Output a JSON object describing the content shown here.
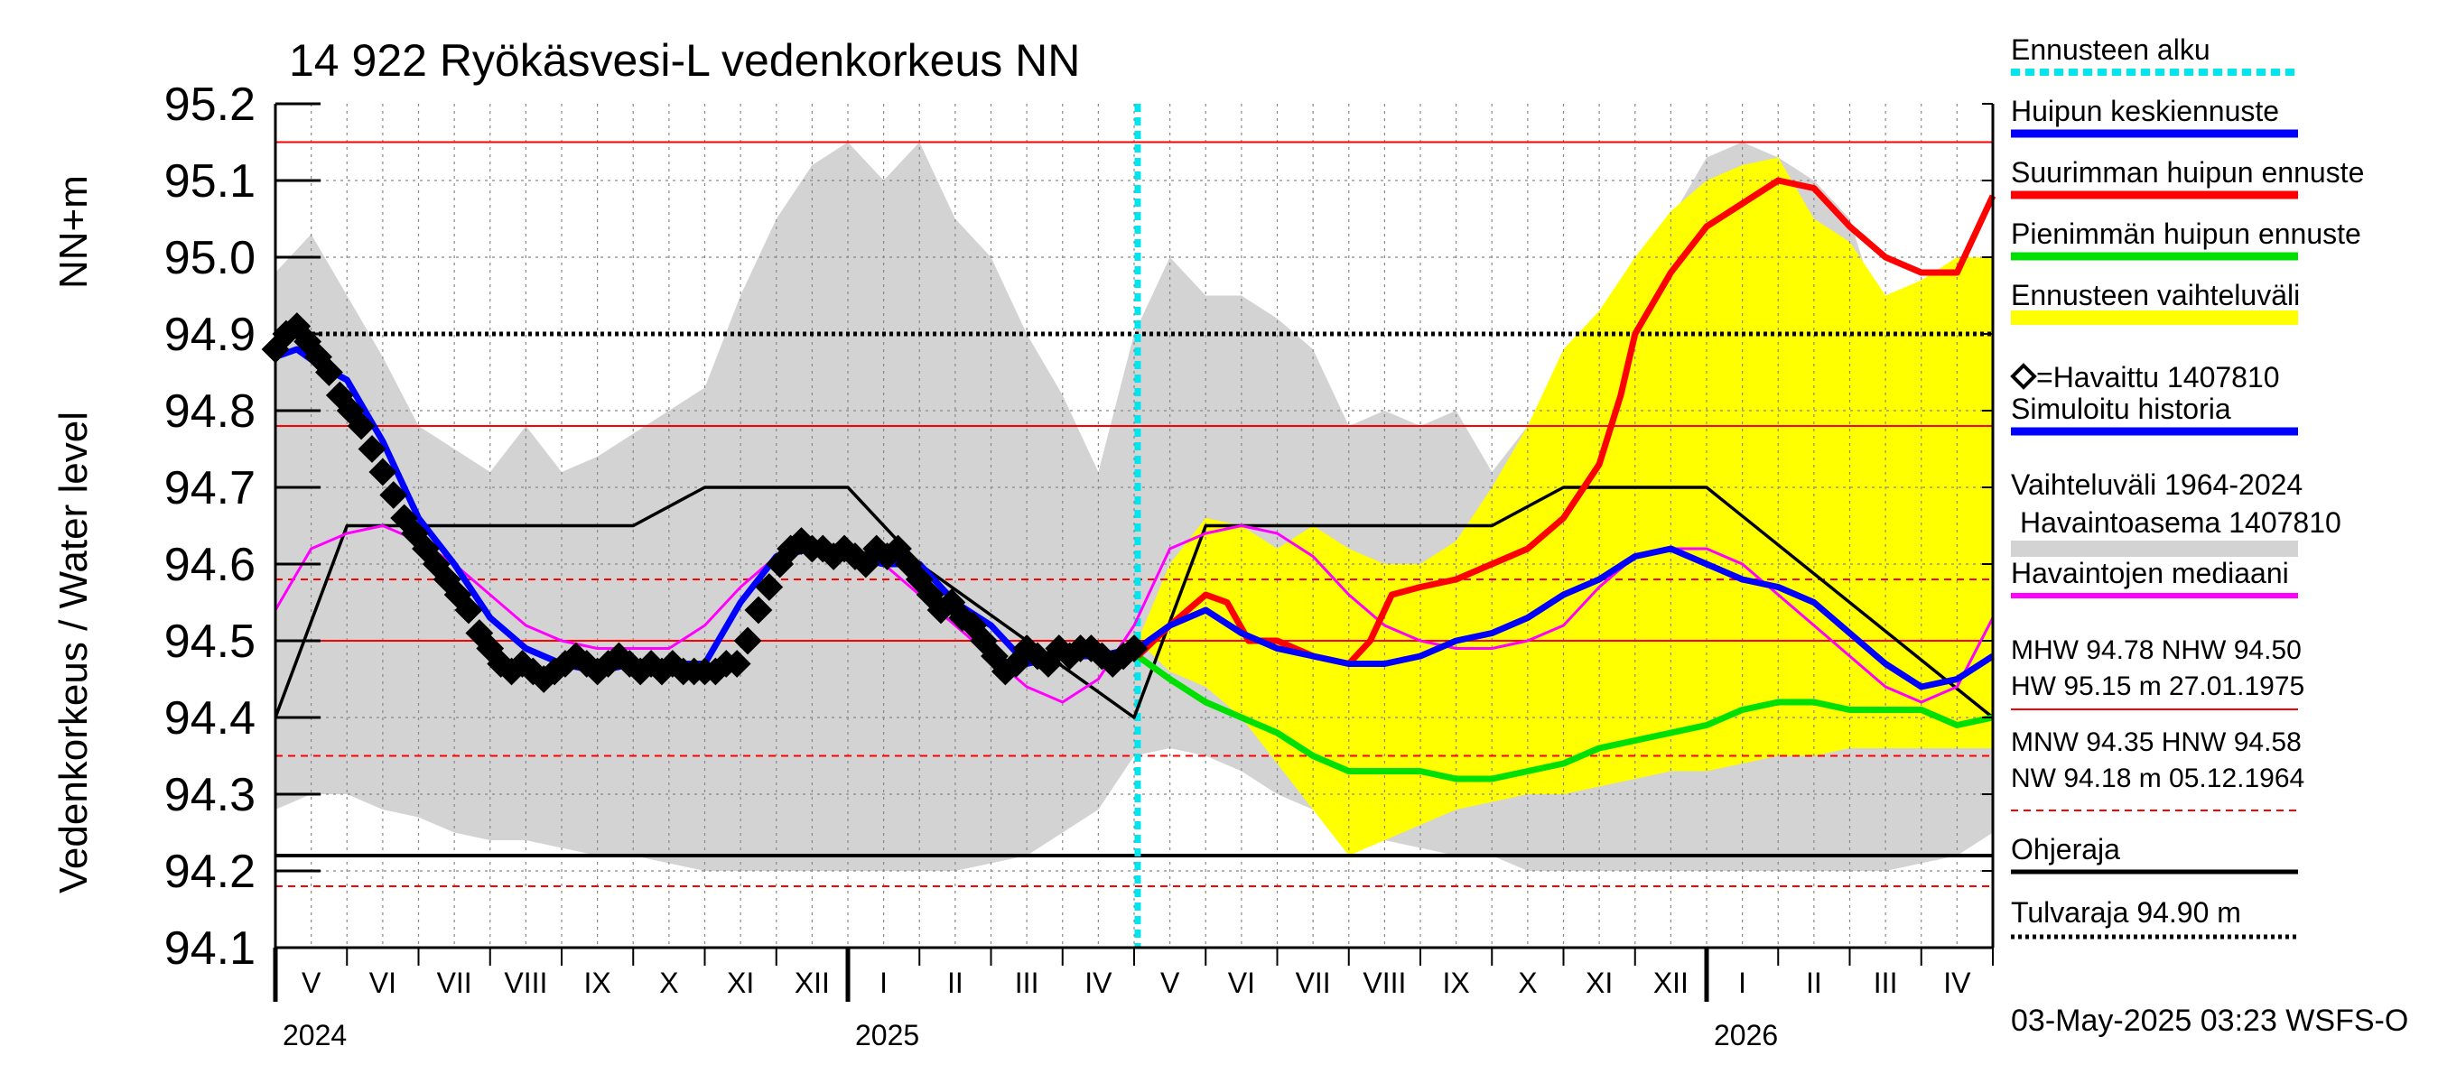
{
  "chart_data": {
    "type": "line",
    "title": "14 922 Ryökäsvesi-L vedenkorkeus NN",
    "ylabel_main": "Vedenkorkeus / Water level",
    "ylabel_unit": "NN+m",
    "ylim": [
      94.1,
      95.2
    ],
    "yticks": [
      "94.1",
      "94.2",
      "94.3",
      "94.4",
      "94.5",
      "94.6",
      "94.7",
      "94.8",
      "94.9",
      "95.0",
      "95.1",
      "95.2"
    ],
    "x_unit": "months since 2024-05-01",
    "xlim": [
      0,
      24
    ],
    "month_labels": [
      "V",
      "VI",
      "VII",
      "VIII",
      "IX",
      "X",
      "XI",
      "XII",
      "I",
      "II",
      "III",
      "IV",
      "V",
      "VI",
      "VII",
      "VIII",
      "IX",
      "X",
      "XI",
      "XII",
      "I",
      "II",
      "III",
      "IV"
    ],
    "year_labels": [
      {
        "label": "2024",
        "at": 0
      },
      {
        "label": "2025",
        "at": 8
      },
      {
        "label": "2026",
        "at": 20
      }
    ],
    "forecast_start": 12.05,
    "reference_lines": [
      {
        "name": "HW",
        "value": 95.15,
        "color": "#ff0000",
        "style": "solid"
      },
      {
        "name": "MHW",
        "value": 94.78,
        "color": "#ff0000",
        "style": "solid"
      },
      {
        "name": "HNW",
        "value": 94.58,
        "color": "#ff0000",
        "style": "dashed"
      },
      {
        "name": "NHW",
        "value": 94.5,
        "color": "#ff0000",
        "style": "solid"
      },
      {
        "name": "MNW",
        "value": 94.35,
        "color": "#ff0000",
        "style": "dashed"
      },
      {
        "name": "NW",
        "value": 94.18,
        "color": "#ff0000",
        "style": "dashed"
      },
      {
        "name": "Ohjeraja",
        "value": 94.22,
        "color": "#000000",
        "style": "solid"
      },
      {
        "name": "Tulvaraja",
        "value": 94.9,
        "color": "#000000",
        "style": "dotted"
      }
    ],
    "series": [
      {
        "name": "Vaihteluväli 1964-2024 Havaintoasema 1407810",
        "kind": "band",
        "color": "#d3d3d3",
        "x": [
          0,
          0.5,
          1,
          1.5,
          2,
          2.5,
          3,
          3.5,
          4,
          4.5,
          5,
          5.5,
          6,
          6.5,
          7,
          7.5,
          8,
          8.5,
          9,
          9.5,
          10,
          10.5,
          11,
          11.5,
          12,
          12.5,
          13,
          13.5,
          14,
          14.5,
          15,
          15.5,
          16,
          16.5,
          17,
          17.5,
          18,
          18.5,
          19,
          19.5,
          20,
          20.5,
          21,
          21.5,
          22,
          22.5,
          23,
          23.5,
          24
        ],
        "upper": [
          94.98,
          95.03,
          94.95,
          94.87,
          94.78,
          94.75,
          94.72,
          94.78,
          94.72,
          94.74,
          94.77,
          94.8,
          94.83,
          94.95,
          95.05,
          95.12,
          95.15,
          95.1,
          95.15,
          95.05,
          95.0,
          94.9,
          94.82,
          94.72,
          94.9,
          95.0,
          94.95,
          94.95,
          94.92,
          94.88,
          94.78,
          94.8,
          94.78,
          94.8,
          94.72,
          94.78,
          94.8,
          94.78,
          94.9,
          95.05,
          95.13,
          95.15,
          95.13,
          95.1,
          95.05,
          94.9,
          94.87,
          94.9,
          94.98
        ],
        "lower": [
          94.28,
          94.3,
          94.3,
          94.28,
          94.27,
          94.25,
          94.24,
          94.24,
          94.23,
          94.22,
          94.22,
          94.21,
          94.2,
          94.2,
          94.2,
          94.2,
          94.2,
          94.2,
          94.2,
          94.2,
          94.21,
          94.22,
          94.25,
          94.28,
          94.35,
          94.36,
          94.35,
          94.33,
          94.3,
          94.28,
          94.25,
          94.24,
          94.23,
          94.22,
          94.22,
          94.2,
          94.2,
          94.2,
          94.2,
          94.2,
          94.2,
          94.2,
          94.2,
          94.2,
          94.2,
          94.2,
          94.21,
          94.22,
          94.25
        ]
      },
      {
        "name": "Ennusteen vaihteluväli",
        "kind": "band",
        "color": "#ffff00",
        "x": [
          12.05,
          12.5,
          13,
          13.5,
          14,
          14.5,
          15,
          15.5,
          16,
          16.5,
          17,
          17.5,
          18,
          18.5,
          19,
          19.5,
          20,
          20.5,
          21,
          21.5,
          22,
          22.5,
          23,
          23.5,
          24
        ],
        "upper": [
          94.5,
          94.6,
          94.66,
          94.65,
          94.62,
          94.65,
          94.62,
          94.6,
          94.6,
          94.63,
          94.7,
          94.78,
          94.88,
          94.93,
          95.0,
          95.06,
          95.1,
          95.12,
          95.13,
          95.05,
          95.02,
          94.95,
          94.97,
          95.0,
          95.0
        ],
        "lower": [
          94.5,
          94.46,
          94.44,
          94.4,
          94.34,
          94.28,
          94.22,
          94.24,
          94.26,
          94.28,
          94.29,
          94.3,
          94.3,
          94.31,
          94.32,
          94.33,
          94.33,
          94.34,
          94.35,
          94.35,
          94.36,
          94.36,
          94.36,
          94.36,
          94.36
        ]
      },
      {
        "name": "Havaintojen mediaani",
        "kind": "line",
        "color": "#ff00ff",
        "x": [
          0,
          0.5,
          1,
          1.5,
          2,
          2.5,
          3,
          3.5,
          4,
          4.5,
          5,
          5.5,
          6,
          6.5,
          7,
          7.5,
          8,
          8.5,
          9,
          9.5,
          10,
          10.5,
          11,
          11.5,
          12,
          12.5,
          13,
          13.5,
          14,
          14.5,
          15,
          15.5,
          16,
          16.5,
          17,
          17.5,
          18,
          18.5,
          19,
          19.5,
          20,
          20.5,
          21,
          21.5,
          22,
          22.5,
          23,
          23.5,
          24
        ],
        "y": [
          94.54,
          94.62,
          94.64,
          94.65,
          94.63,
          94.6,
          94.56,
          94.52,
          94.5,
          94.49,
          94.49,
          94.49,
          94.52,
          94.57,
          94.61,
          94.62,
          94.62,
          94.6,
          94.56,
          94.52,
          94.48,
          94.44,
          94.42,
          94.45,
          94.52,
          94.62,
          94.64,
          94.65,
          94.64,
          94.61,
          94.56,
          94.52,
          94.5,
          94.49,
          94.49,
          94.5,
          94.52,
          94.57,
          94.61,
          94.62,
          94.62,
          94.6,
          94.56,
          94.52,
          94.48,
          94.44,
          94.42,
          94.44,
          94.53
        ]
      },
      {
        "name": "Simuloitu historia",
        "kind": "line",
        "color": "#0000ff",
        "x": [
          0,
          0.3,
          0.6,
          1,
          1.5,
          2,
          2.5,
          3,
          3.5,
          4,
          4.5,
          5,
          5.5,
          6,
          6.5,
          7,
          7.5,
          8,
          8.5,
          9,
          9.5,
          10,
          10.5,
          11,
          11.5,
          12,
          12.05
        ],
        "y": [
          94.87,
          94.88,
          94.86,
          94.84,
          94.76,
          94.66,
          94.6,
          94.53,
          94.49,
          94.47,
          94.46,
          94.47,
          94.47,
          94.47,
          94.55,
          94.61,
          94.62,
          94.61,
          94.6,
          94.6,
          94.55,
          94.52,
          94.47,
          94.48,
          94.48,
          94.49,
          94.49
        ]
      },
      {
        "name": "Havaittu 1407810",
        "kind": "markers",
        "color": "#000000",
        "x": [
          0,
          0.15,
          0.3,
          0.45,
          0.6,
          0.75,
          0.9,
          1.05,
          1.2,
          1.35,
          1.5,
          1.65,
          1.8,
          1.95,
          2.1,
          2.25,
          2.4,
          2.55,
          2.7,
          2.85,
          3.0,
          3.15,
          3.3,
          3.45,
          3.6,
          3.75,
          3.9,
          4.05,
          4.2,
          4.35,
          4.5,
          4.65,
          4.8,
          4.95,
          5.1,
          5.25,
          5.4,
          5.55,
          5.7,
          5.85,
          6.0,
          6.15,
          6.3,
          6.45,
          6.6,
          6.75,
          6.9,
          7.05,
          7.2,
          7.35,
          7.5,
          7.65,
          7.8,
          7.95,
          8.1,
          8.25,
          8.4,
          8.55,
          8.7,
          8.85,
          9.0,
          9.15,
          9.3,
          9.45,
          9.6,
          9.75,
          9.9,
          10.05,
          10.2,
          10.35,
          10.5,
          10.65,
          10.8,
          10.95,
          11.1,
          11.25,
          11.4,
          11.55,
          11.7,
          11.85,
          12.0
        ],
        "y": [
          94.88,
          94.9,
          94.91,
          94.89,
          94.87,
          94.85,
          94.82,
          94.8,
          94.78,
          94.75,
          94.72,
          94.69,
          94.66,
          94.64,
          94.62,
          94.6,
          94.58,
          94.56,
          94.54,
          94.51,
          94.49,
          94.47,
          94.46,
          94.47,
          94.46,
          94.45,
          94.46,
          94.47,
          94.48,
          94.47,
          94.46,
          94.47,
          94.48,
          94.47,
          94.46,
          94.47,
          94.46,
          94.47,
          94.46,
          94.46,
          94.46,
          94.46,
          94.47,
          94.47,
          94.5,
          94.54,
          94.57,
          94.6,
          94.62,
          94.63,
          94.62,
          94.62,
          94.61,
          94.62,
          94.61,
          94.6,
          94.62,
          94.61,
          94.62,
          94.6,
          94.58,
          94.56,
          94.54,
          94.55,
          94.53,
          94.52,
          94.5,
          94.48,
          94.46,
          94.47,
          94.49,
          94.48,
          94.47,
          94.49,
          94.48,
          94.49,
          94.49,
          94.48,
          94.47,
          94.48,
          94.49
        ]
      },
      {
        "name": "Suurimman huipun ennuste",
        "kind": "line",
        "color": "#ff0000",
        "x": [
          12.05,
          12.5,
          13,
          13.3,
          13.6,
          14,
          14.5,
          15,
          15.3,
          15.6,
          16,
          16.5,
          17,
          17.5,
          18,
          18.5,
          18.8,
          19,
          19.5,
          20,
          20.5,
          21,
          21.5,
          22,
          22.5,
          23,
          23.5,
          24
        ],
        "y": [
          94.48,
          94.52,
          94.56,
          94.55,
          94.5,
          94.5,
          94.48,
          94.47,
          94.5,
          94.56,
          94.57,
          94.58,
          94.6,
          94.62,
          94.66,
          94.73,
          94.82,
          94.9,
          94.98,
          95.04,
          95.07,
          95.1,
          95.09,
          95.04,
          95.0,
          94.98,
          94.98,
          95.08
        ]
      },
      {
        "name": "Huipun keskiennuste",
        "kind": "line",
        "color": "#0000ff",
        "x": [
          12.05,
          12.5,
          13,
          13.5,
          14,
          14.5,
          15,
          15.5,
          16,
          16.5,
          17,
          17.5,
          18,
          18.5,
          19,
          19.5,
          20,
          20.5,
          21,
          21.5,
          22,
          22.5,
          23,
          23.5,
          24
        ],
        "y": [
          94.49,
          94.52,
          94.54,
          94.51,
          94.49,
          94.48,
          94.47,
          94.47,
          94.48,
          94.5,
          94.51,
          94.53,
          94.56,
          94.58,
          94.61,
          94.62,
          94.6,
          94.58,
          94.57,
          94.55,
          94.51,
          94.47,
          94.44,
          94.45,
          94.48
        ]
      },
      {
        "name": "Pienimmän huipun ennuste",
        "kind": "line",
        "color": "#00e000",
        "x": [
          12.05,
          12.5,
          13,
          13.5,
          14,
          14.5,
          15,
          15.5,
          16,
          16.5,
          17,
          17.5,
          18,
          18.5,
          19,
          19.5,
          20,
          20.5,
          21,
          21.5,
          22,
          22.5,
          23,
          23.5,
          24
        ],
        "y": [
          94.48,
          94.45,
          94.42,
          94.4,
          94.38,
          94.35,
          94.33,
          94.33,
          94.33,
          94.32,
          94.32,
          94.33,
          94.34,
          94.36,
          94.37,
          94.38,
          94.39,
          94.41,
          94.42,
          94.42,
          94.41,
          94.41,
          94.41,
          94.39,
          94.4
        ]
      },
      {
        "name": "Black step line",
        "kind": "line",
        "color": "#000000",
        "x": [
          0,
          1,
          5,
          6,
          8,
          9,
          12,
          13,
          17,
          18,
          20,
          24
        ],
        "y": [
          94.4,
          94.65,
          94.65,
          94.7,
          94.7,
          94.6,
          94.4,
          94.65,
          94.65,
          94.7,
          94.7,
          94.4
        ]
      }
    ],
    "legend": [
      "Ennusteen alku",
      "Huipun keskiennuste",
      "Suurimman huipun ennuste",
      "Pienimmän huipun ennuste",
      "Ennusteen vaihteluväli",
      "=Havaittu 1407810",
      "Simuloitu historia",
      "Vaihteluväli 1964-2024",
      "Havaintoasema 1407810",
      "Havaintojen mediaani"
    ],
    "stats": {
      "line1": "MHW  94.78 NHW  94.50",
      "line2": "HW  95.15 m 27.01.1975",
      "line3": "MNW  94.35 HNW  94.58",
      "line4": "NW  94.18 m 05.12.1964"
    },
    "ohjeraja_label": "Ohjeraja",
    "tulvaraja_label": "Tulvaraja 94.90 m",
    "footer": "03-May-2025 03:23 WSFS-O"
  }
}
